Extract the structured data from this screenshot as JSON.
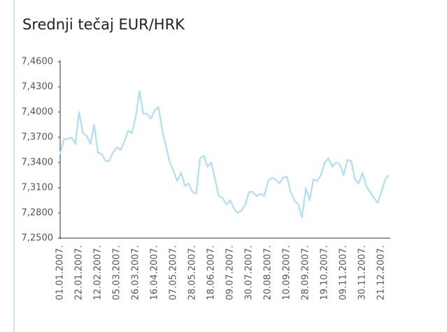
{
  "chart_data": {
    "type": "line",
    "title": "Srednji tečaj EUR/HRK",
    "categories": [
      "01.01.2007.",
      null,
      null,
      null,
      null,
      "22.01.2007.",
      null,
      null,
      null,
      null,
      "12.02.2007.",
      null,
      null,
      null,
      null,
      "05.03.2007.",
      null,
      null,
      null,
      null,
      "26.03.2007.",
      null,
      null,
      null,
      null,
      "16.04.2007.",
      null,
      null,
      null,
      null,
      "07.05.2007.",
      null,
      null,
      null,
      null,
      "28.05.2007.",
      null,
      null,
      null,
      null,
      "18.06.2007.",
      null,
      null,
      null,
      null,
      "09.07.2007.",
      null,
      null,
      null,
      null,
      "30.07.2007.",
      null,
      null,
      null,
      null,
      "20.08.2007.",
      null,
      null,
      null,
      null,
      "10.09.2007.",
      null,
      null,
      null,
      null,
      "28.09.2007.",
      null,
      null,
      null,
      null,
      "19.10.2007.",
      null,
      null,
      null,
      null,
      "09.11.2007.",
      null,
      null,
      null,
      null,
      "30.11.2007.",
      null,
      null,
      null,
      null,
      "21.12.2007.",
      null,
      null
    ],
    "series": [
      {
        "color": "#aee0f4",
        "values": [
          7.35,
          7.368,
          7.368,
          7.37,
          7.362,
          7.4,
          7.375,
          7.372,
          7.362,
          7.385,
          7.352,
          7.35,
          7.342,
          7.342,
          7.352,
          7.358,
          7.355,
          7.365,
          7.378,
          7.375,
          7.395,
          7.425,
          7.398,
          7.398,
          7.392,
          7.402,
          7.406,
          7.378,
          7.36,
          7.34,
          7.33,
          7.318,
          7.328,
          7.312,
          7.315,
          7.305,
          7.303,
          7.345,
          7.348,
          7.335,
          7.34,
          7.32,
          7.3,
          7.298,
          7.29,
          7.295,
          7.285,
          7.28,
          7.283,
          7.29,
          7.305,
          7.305,
          7.3,
          7.303,
          7.3,
          7.318,
          7.322,
          7.32,
          7.315,
          7.322,
          7.323,
          7.305,
          7.295,
          7.29,
          7.275,
          7.31,
          7.295,
          7.32,
          7.318,
          7.325,
          7.34,
          7.345,
          7.335,
          7.34,
          7.338,
          7.325,
          7.343,
          7.342,
          7.32,
          7.315,
          7.328,
          7.312,
          7.305,
          7.298,
          7.292,
          7.305,
          7.32,
          7.325
        ]
      }
    ],
    "ylim": [
      7.25,
      7.46
    ],
    "yticks": [
      {
        "value": 7.25,
        "label": "7,2500"
      },
      {
        "value": 7.28,
        "label": "7,2800"
      },
      {
        "value": 7.31,
        "label": "7,3100"
      },
      {
        "value": 7.34,
        "label": "7,3400"
      },
      {
        "value": 7.37,
        "label": "7,3700"
      },
      {
        "value": 7.4,
        "label": "7,4000"
      },
      {
        "value": 7.43,
        "label": "7,4300"
      },
      {
        "value": 7.46,
        "label": "7,4600"
      }
    ],
    "grid": false
  }
}
